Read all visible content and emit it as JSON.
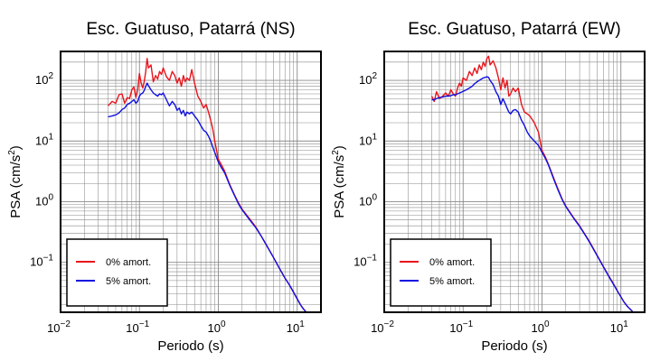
{
  "chart_data": [
    {
      "type": "line",
      "title": "Esc. Guatuso, Patarrá (NS)",
      "xlabel": "Periodo (s)",
      "ylabel": "PSA (cm/s²)",
      "ylabel_parts": [
        "PSA (cm/s",
        "2",
        ")"
      ],
      "xscale": "log",
      "yscale": "log",
      "xlim": [
        0.01,
        20
      ],
      "ylim": [
        0.015,
        300
      ],
      "grid": true,
      "legend": "bottom-left",
      "x_ticks": [
        {
          "base": "10",
          "exp": "−2",
          "value": 0.01
        },
        {
          "base": "10",
          "exp": "−1",
          "value": 0.1
        },
        {
          "base": "10",
          "exp": "0",
          "value": 1
        },
        {
          "base": "10",
          "exp": "1",
          "value": 10
        }
      ],
      "y_ticks": [
        {
          "base": "10",
          "exp": "−1",
          "value": 0.1
        },
        {
          "base": "10",
          "exp": "0",
          "value": 1
        },
        {
          "base": "10",
          "exp": "1",
          "value": 10
        },
        {
          "base": "10",
          "exp": "2",
          "value": 100
        }
      ],
      "series": [
        {
          "name": "0% amort.",
          "color": "#e8141c",
          "x": [
            0.04,
            0.045,
            0.05,
            0.055,
            0.06,
            0.065,
            0.07,
            0.075,
            0.08,
            0.085,
            0.09,
            0.095,
            0.1,
            0.105,
            0.11,
            0.115,
            0.12,
            0.125,
            0.13,
            0.14,
            0.15,
            0.16,
            0.17,
            0.18,
            0.19,
            0.2,
            0.22,
            0.24,
            0.26,
            0.28,
            0.3,
            0.32,
            0.34,
            0.36,
            0.38,
            0.4,
            0.43,
            0.46,
            0.5,
            0.55,
            0.6,
            0.65,
            0.7,
            0.75,
            0.8,
            0.85,
            0.9,
            1.0,
            1.1,
            1.2,
            1.4,
            1.6,
            1.8,
            2.0,
            2.5,
            3.0,
            3.5,
            4.0,
            5.0,
            6.0,
            7.0,
            8.0,
            9.0,
            10.0,
            11.0,
            12.0,
            13.0
          ],
          "y": [
            38,
            45,
            42,
            58,
            60,
            42,
            52,
            50,
            70,
            78,
            52,
            70,
            130,
            90,
            75,
            95,
            140,
            230,
            160,
            180,
            95,
            120,
            105,
            140,
            125,
            160,
            115,
            100,
            140,
            120,
            90,
            110,
            80,
            120,
            95,
            110,
            100,
            150,
            90,
            55,
            45,
            35,
            40,
            30,
            22,
            16,
            10,
            5.0,
            4.0,
            3.2,
            1.9,
            1.3,
            0.95,
            0.75,
            0.52,
            0.38,
            0.27,
            0.2,
            0.12,
            0.078,
            0.055,
            0.042,
            0.032,
            0.025,
            0.02,
            0.017,
            0.015
          ]
        },
        {
          "name": "5% amort.",
          "color": "#1010e0",
          "x": [
            0.04,
            0.045,
            0.05,
            0.055,
            0.06,
            0.065,
            0.07,
            0.075,
            0.08,
            0.085,
            0.09,
            0.095,
            0.1,
            0.105,
            0.11,
            0.115,
            0.12,
            0.125,
            0.13,
            0.14,
            0.15,
            0.16,
            0.17,
            0.18,
            0.19,
            0.2,
            0.22,
            0.24,
            0.26,
            0.28,
            0.3,
            0.32,
            0.34,
            0.36,
            0.38,
            0.4,
            0.43,
            0.46,
            0.5,
            0.55,
            0.6,
            0.65,
            0.7,
            0.75,
            0.8,
            0.85,
            0.9,
            1.0,
            1.1,
            1.2,
            1.4,
            1.6,
            1.8,
            2.0,
            2.5,
            3.0,
            3.5,
            4.0,
            5.0,
            6.0,
            7.0,
            8.0,
            9.0,
            10.0,
            11.0,
            12.0,
            13.0
          ],
          "y": [
            25,
            26,
            27,
            29,
            33,
            35,
            40,
            42,
            45,
            48,
            42,
            45,
            55,
            60,
            62,
            68,
            80,
            90,
            82,
            70,
            62,
            58,
            55,
            60,
            58,
            62,
            48,
            38,
            45,
            40,
            32,
            35,
            28,
            32,
            26,
            30,
            28,
            30,
            26,
            22,
            18,
            15,
            14,
            12,
            10,
            8,
            6.5,
            4.5,
            3.6,
            3.0,
            1.85,
            1.27,
            0.92,
            0.73,
            0.5,
            0.37,
            0.27,
            0.2,
            0.12,
            0.078,
            0.055,
            0.042,
            0.032,
            0.025,
            0.02,
            0.017,
            0.015
          ]
        }
      ]
    },
    {
      "type": "line",
      "title": "Esc. Guatuso, Patarrá (EW)",
      "xlabel": "Periodo (s)",
      "ylabel": "PSA (cm/s²)",
      "ylabel_parts": [
        "PSA (cm/s",
        "2",
        ")"
      ],
      "xscale": "log",
      "yscale": "log",
      "xlim": [
        0.01,
        20
      ],
      "ylim": [
        0.015,
        300
      ],
      "grid": true,
      "legend": "bottom-left",
      "x_ticks": [
        {
          "base": "10",
          "exp": "−2",
          "value": 0.01
        },
        {
          "base": "10",
          "exp": "−1",
          "value": 0.1
        },
        {
          "base": "10",
          "exp": "0",
          "value": 1
        },
        {
          "base": "10",
          "exp": "1",
          "value": 10
        }
      ],
      "y_ticks": [
        {
          "base": "10",
          "exp": "−1",
          "value": 0.1
        },
        {
          "base": "10",
          "exp": "0",
          "value": 1
        },
        {
          "base": "10",
          "exp": "1",
          "value": 10
        },
        {
          "base": "10",
          "exp": "2",
          "value": 100
        }
      ],
      "series": [
        {
          "name": "0% amort.",
          "color": "#e8141c",
          "x": [
            0.04,
            0.043,
            0.046,
            0.05,
            0.055,
            0.06,
            0.065,
            0.07,
            0.075,
            0.08,
            0.085,
            0.09,
            0.095,
            0.1,
            0.11,
            0.12,
            0.13,
            0.14,
            0.15,
            0.16,
            0.17,
            0.18,
            0.19,
            0.2,
            0.21,
            0.22,
            0.24,
            0.26,
            0.28,
            0.3,
            0.32,
            0.34,
            0.36,
            0.38,
            0.4,
            0.43,
            0.46,
            0.5,
            0.55,
            0.6,
            0.65,
            0.7,
            0.8,
            0.9,
            1.0,
            1.1,
            1.2,
            1.4,
            1.6,
            1.8,
            2.0,
            2.5,
            3.0,
            3.5,
            4.0,
            5.0,
            6.0,
            7.0,
            8.0,
            9.0,
            10.0,
            11.0,
            12.0,
            13.0,
            14.0
          ],
          "y": [
            55,
            45,
            65,
            50,
            55,
            62,
            55,
            70,
            60,
            55,
            75,
            90,
            80,
            110,
            100,
            140,
            120,
            160,
            130,
            180,
            150,
            200,
            170,
            230,
            250,
            180,
            210,
            160,
            110,
            70,
            110,
            75,
            100,
            55,
            60,
            75,
            65,
            75,
            40,
            30,
            28,
            26,
            20,
            14,
            7,
            5.5,
            4.2,
            2.5,
            1.6,
            1.1,
            0.85,
            0.55,
            0.4,
            0.29,
            0.22,
            0.13,
            0.085,
            0.06,
            0.045,
            0.034,
            0.027,
            0.022,
            0.019,
            0.017,
            0.0155
          ]
        },
        {
          "name": "5% amort.",
          "color": "#1010e0",
          "x": [
            0.04,
            0.043,
            0.046,
            0.05,
            0.055,
            0.06,
            0.065,
            0.07,
            0.075,
            0.08,
            0.085,
            0.09,
            0.095,
            0.1,
            0.11,
            0.12,
            0.13,
            0.14,
            0.15,
            0.16,
            0.17,
            0.18,
            0.19,
            0.2,
            0.21,
            0.22,
            0.24,
            0.26,
            0.28,
            0.3,
            0.32,
            0.34,
            0.36,
            0.38,
            0.4,
            0.43,
            0.46,
            0.5,
            0.55,
            0.6,
            0.65,
            0.7,
            0.8,
            0.9,
            1.0,
            1.1,
            1.2,
            1.4,
            1.6,
            1.8,
            2.0,
            2.5,
            3.0,
            3.5,
            4.0,
            5.0,
            6.0,
            7.0,
            8.0,
            9.0,
            10.0,
            11.0,
            12.0,
            13.0,
            14.0
          ],
          "y": [
            48,
            48,
            50,
            52,
            53,
            55,
            55,
            56,
            58,
            58,
            60,
            62,
            64,
            66,
            70,
            75,
            80,
            88,
            95,
            100,
            105,
            110,
            112,
            115,
            112,
            100,
            85,
            65,
            55,
            40,
            50,
            42,
            35,
            30,
            28,
            32,
            33,
            30,
            22,
            18,
            14,
            12,
            10,
            8.5,
            6.5,
            5.2,
            4.1,
            2.4,
            1.55,
            1.08,
            0.83,
            0.54,
            0.39,
            0.285,
            0.215,
            0.128,
            0.084,
            0.059,
            0.044,
            0.034,
            0.027,
            0.022,
            0.019,
            0.017,
            0.0155
          ]
        }
      ]
    }
  ]
}
